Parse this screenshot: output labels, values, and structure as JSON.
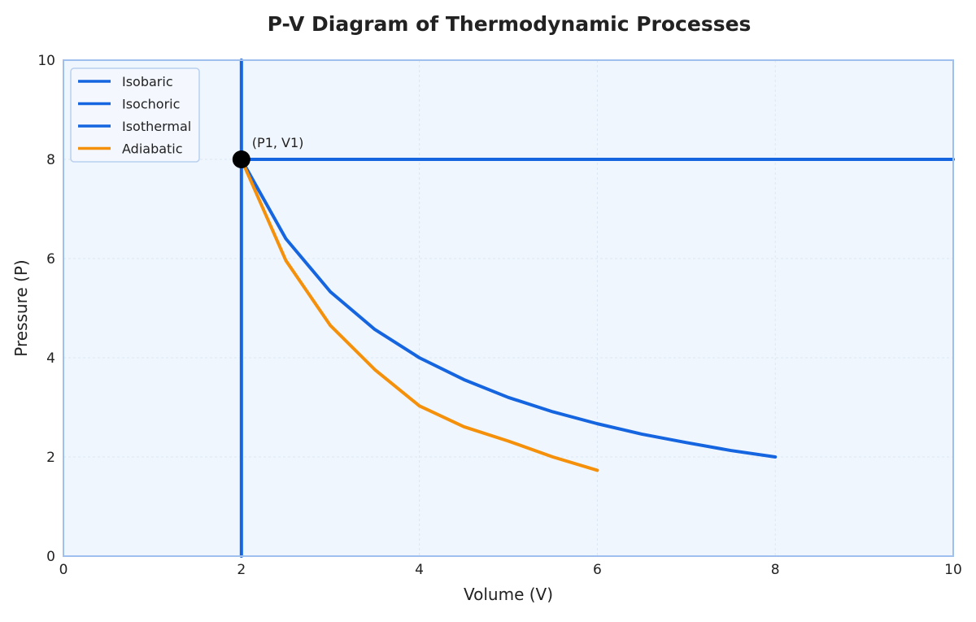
{
  "chart_data": {
    "type": "line",
    "title": "P-V Diagram of Thermodynamic Processes",
    "xlabel": "Volume (V)",
    "ylabel": "Pressure (P)",
    "xlim": [
      0,
      10
    ],
    "ylim": [
      0,
      10
    ],
    "x_ticks": [
      "0",
      "2",
      "4",
      "6",
      "8",
      "10"
    ],
    "y_ticks": [
      "0",
      "2",
      "4",
      "6",
      "8",
      "10"
    ],
    "grid": true,
    "legend_position": "top-left",
    "series": [
      {
        "name": "Isobaric",
        "color": "#1565e0",
        "x": [
          2,
          10
        ],
        "y": [
          8,
          8
        ]
      },
      {
        "name": "Isochoric",
        "color": "#1565e0",
        "x": [
          2,
          2
        ],
        "y": [
          0,
          10
        ]
      },
      {
        "name": "Isothermal",
        "color": "#1565e0",
        "x": [
          2,
          2.5,
          3,
          3.5,
          4,
          4.5,
          5,
          5.5,
          6,
          6.5,
          7,
          7.5,
          8
        ],
        "y": [
          8,
          6.4,
          5.33,
          4.57,
          4.0,
          3.56,
          3.2,
          2.91,
          2.67,
          2.46,
          2.29,
          2.13,
          2.0
        ]
      },
      {
        "name": "Adiabatic",
        "color": "#f5900a",
        "x": [
          2,
          2.5,
          3,
          3.5,
          4,
          4.5,
          5,
          5.5,
          6
        ],
        "y": [
          8,
          5.96,
          4.65,
          3.76,
          3.03,
          2.61,
          2.32,
          2.0,
          1.73
        ]
      }
    ],
    "annotations": [
      {
        "text": "(P1, V1)",
        "x": 2,
        "y": 8
      }
    ]
  }
}
